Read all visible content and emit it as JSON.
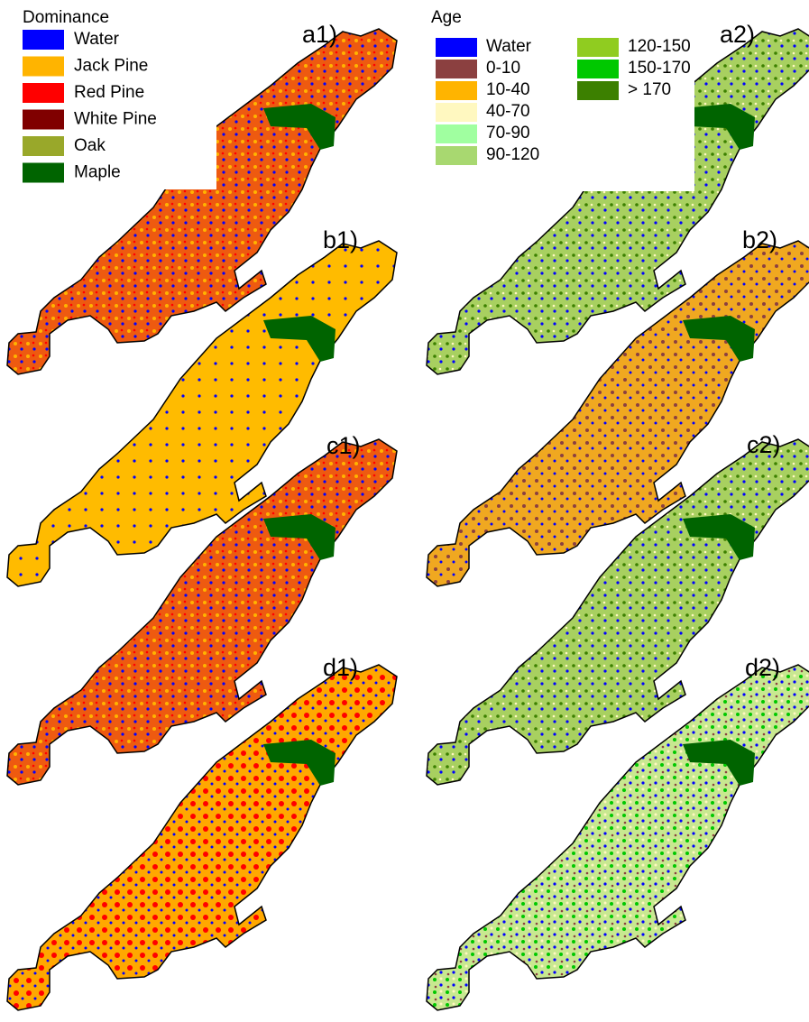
{
  "legends": {
    "dominance": {
      "title": "Dominance",
      "items": [
        {
          "label": "Water",
          "color": "#0000ff"
        },
        {
          "label": "Jack Pine",
          "color": "#ffb400"
        },
        {
          "label": "Red Pine",
          "color": "#ff0000"
        },
        {
          "label": "White Pine",
          "color": "#800000"
        },
        {
          "label": "Oak",
          "color": "#99a82a"
        },
        {
          "label": "Maple",
          "color": "#006400"
        }
      ]
    },
    "age": {
      "title": "Age",
      "items": [
        {
          "label": "Water",
          "color": "#0000ff"
        },
        {
          "label": "0-10",
          "color": "#8b4040"
        },
        {
          "label": "10-40",
          "color": "#ffb400"
        },
        {
          "label": "40-70",
          "color": "#fff8c0"
        },
        {
          "label": "70-90",
          "color": "#a0ffa0"
        },
        {
          "label": "90-120",
          "color": "#a8d870"
        },
        {
          "label": "120-150",
          "color": "#90cc20"
        },
        {
          "label": "150-170",
          "color": "#00c800"
        },
        {
          "label": "> 170",
          "color": "#3c8000"
        }
      ]
    }
  },
  "panels": [
    {
      "label": "a1)"
    },
    {
      "label": "b1)"
    },
    {
      "label": "c1)"
    },
    {
      "label": "d1)"
    },
    {
      "label": "a2)"
    },
    {
      "label": "b2)"
    },
    {
      "label": "c2)"
    },
    {
      "label": "d2)"
    }
  ]
}
